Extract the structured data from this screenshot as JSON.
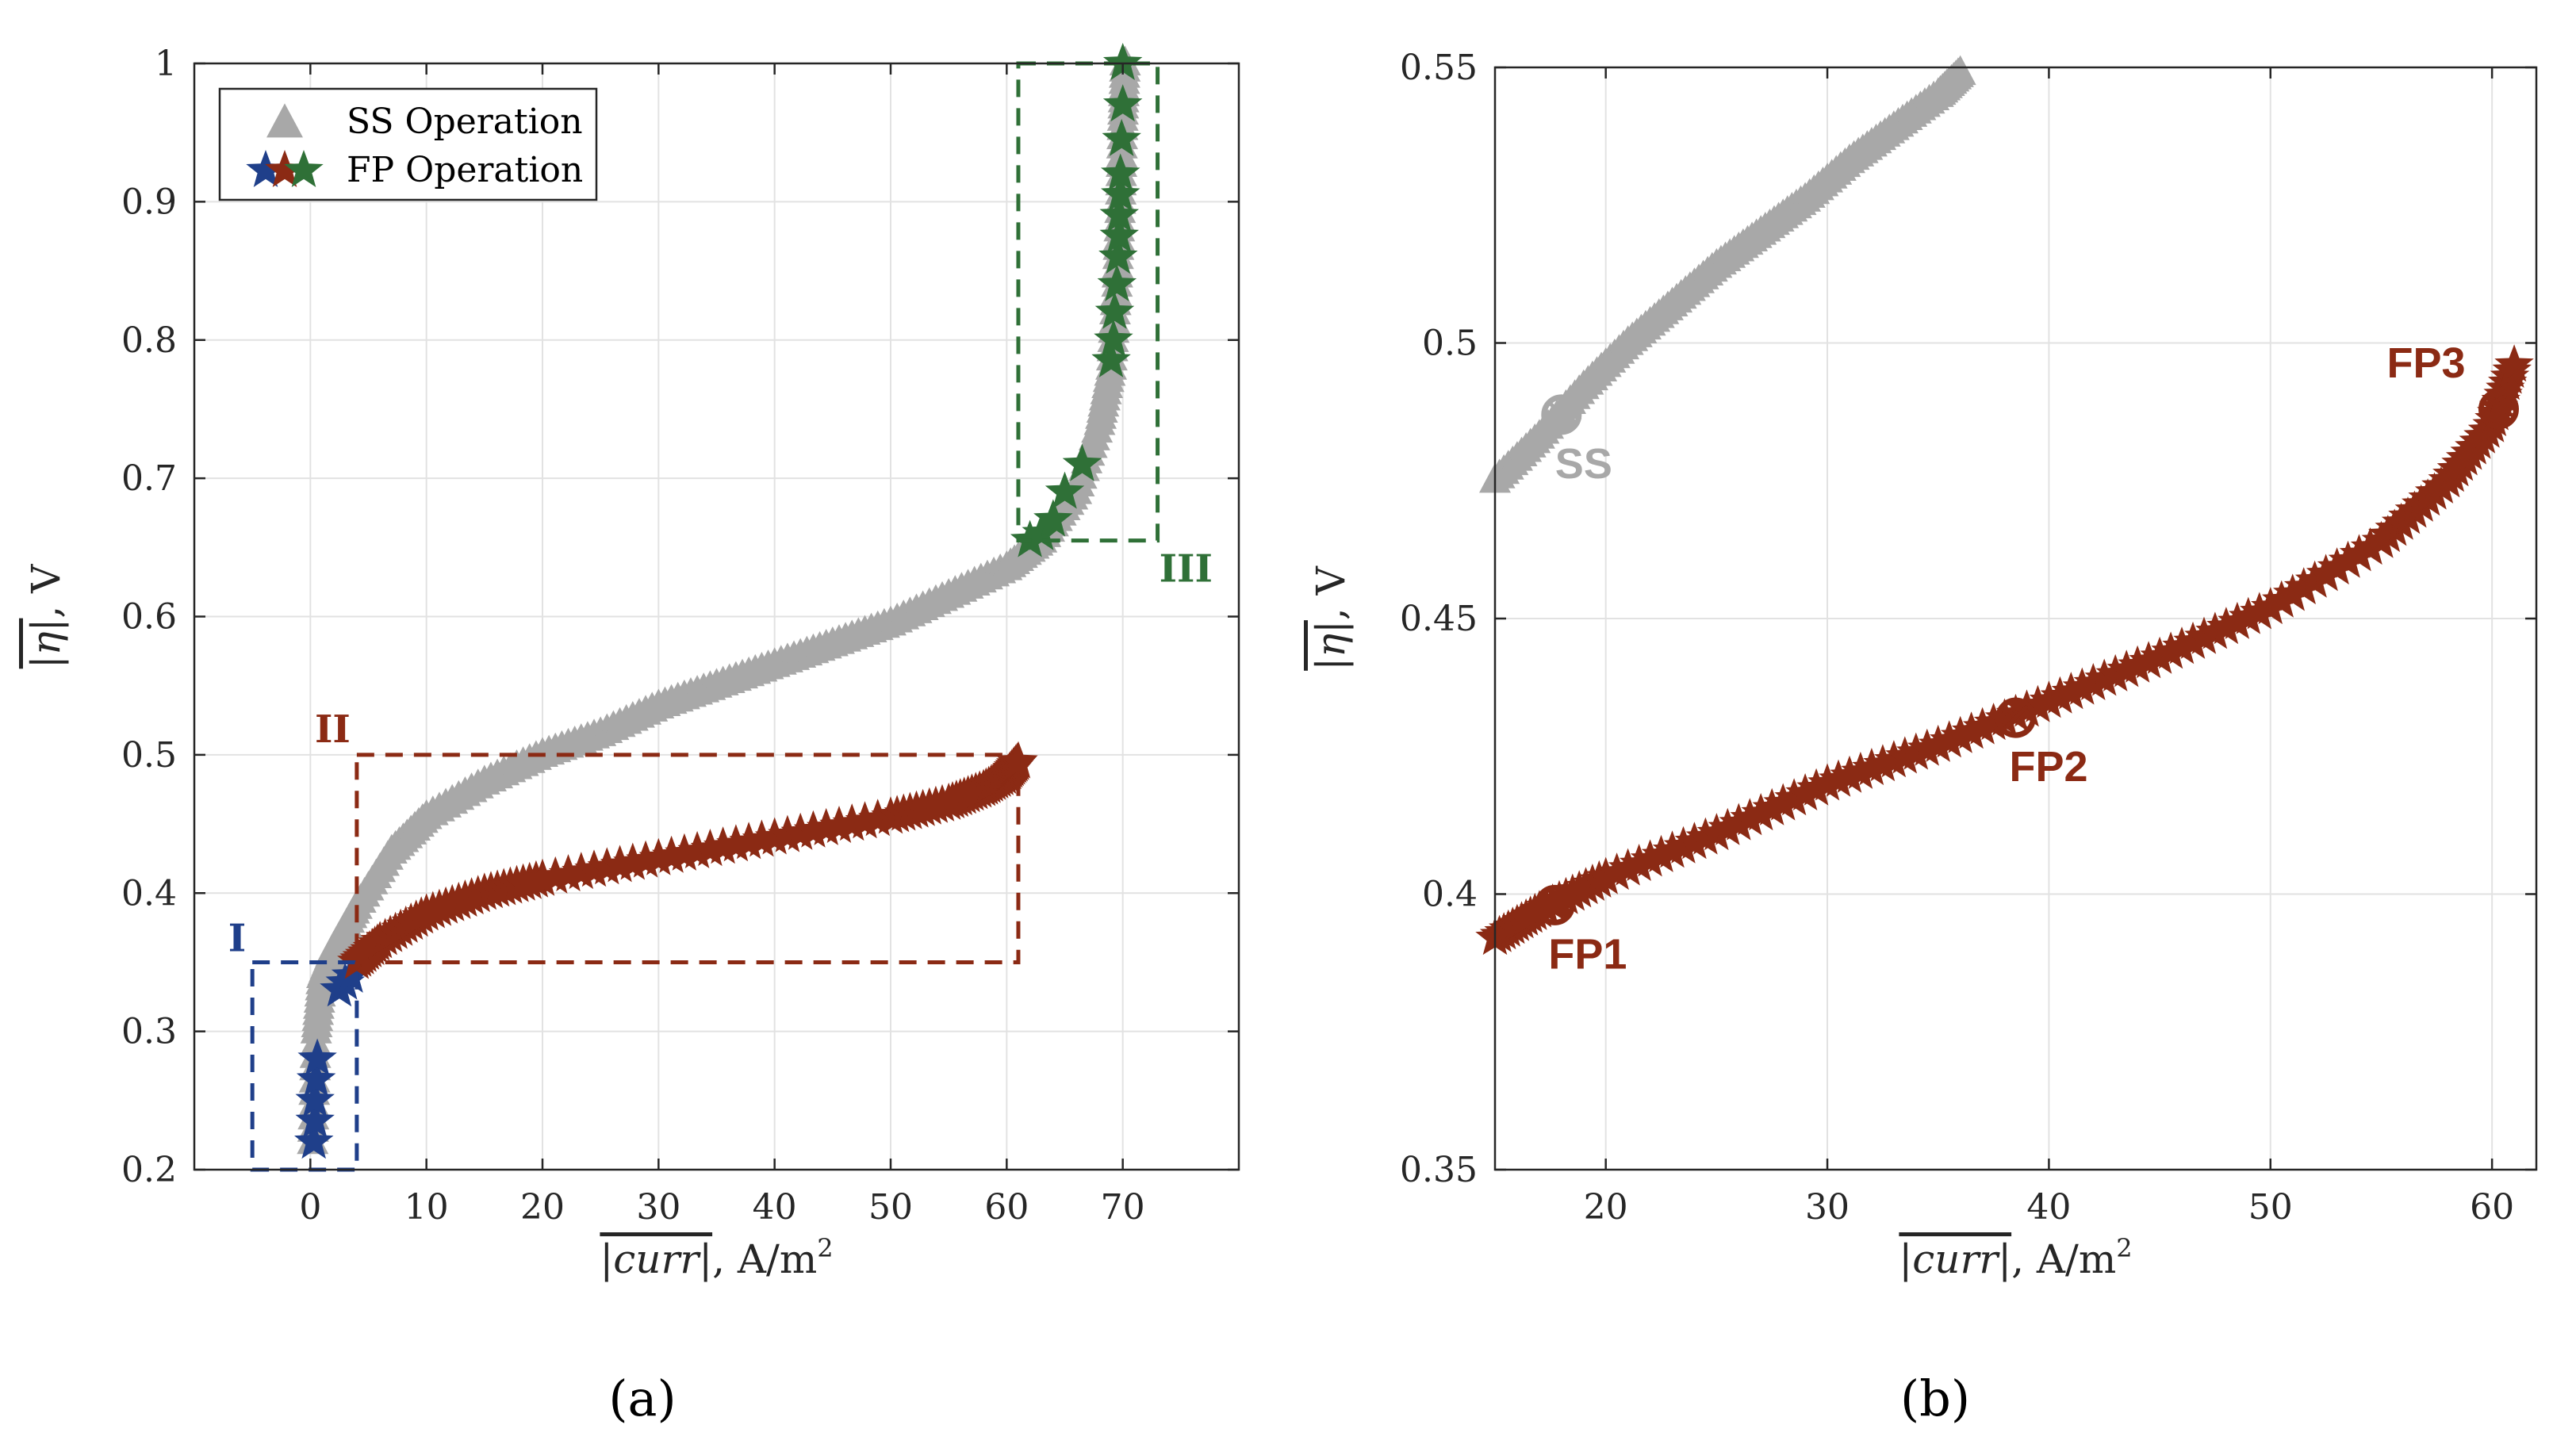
{
  "colors": {
    "ss": "#a8a8a8",
    "fp_blue": "#1f3f8a",
    "fp_red": "#8b2a14",
    "fp_green": "#2f7037",
    "grid": "#e2e2e2",
    "axis": "#262626"
  },
  "panel_a_label": "(a)",
  "panel_b_label": "(b)",
  "chart_data": [
    {
      "type": "scatter",
      "panel": "a",
      "xlabel_main": "|curr|",
      "xlabel_unit": ", A/m",
      "xlabel_sup": "2",
      "ylabel_main": "|η|",
      "ylabel_unit": ", V",
      "xlim": [
        -10,
        80
      ],
      "ylim": [
        0.2,
        1.0
      ],
      "xticks": [
        0,
        10,
        20,
        30,
        40,
        50,
        60,
        70
      ],
      "yticks": [
        0.2,
        0.3,
        0.4,
        0.5,
        0.6,
        0.7,
        0.8,
        0.9,
        1.0
      ],
      "xtick_labels": [
        "0",
        "10",
        "20",
        "30",
        "40",
        "50",
        "60",
        "70"
      ],
      "ytick_labels": [
        "0.2",
        "0.3",
        "0.4",
        "0.5",
        "0.6",
        "0.7",
        "0.8",
        "0.9",
        "1"
      ],
      "grid": true,
      "legend": {
        "position": "top-left",
        "entries": [
          {
            "label": "SS Operation",
            "marker": "triangle"
          },
          {
            "label": "FP Operation",
            "marker": "stars"
          }
        ]
      },
      "series": [
        {
          "name": "SS Operation",
          "marker": "triangle",
          "color": "#a8a8a8",
          "curve": [
            [
              0.2,
              0.22
            ],
            [
              0.5,
              0.3
            ],
            [
              1.0,
              0.34
            ],
            [
              2.0,
              0.36
            ],
            [
              4.0,
              0.39
            ],
            [
              7.0,
              0.43
            ],
            [
              10.0,
              0.455
            ],
            [
              15.0,
              0.48
            ],
            [
              20.0,
              0.5
            ],
            [
              25.0,
              0.515
            ],
            [
              30.0,
              0.535
            ],
            [
              35.0,
              0.55
            ],
            [
              40.0,
              0.565
            ],
            [
              45.0,
              0.58
            ],
            [
              50.0,
              0.595
            ],
            [
              55.0,
              0.615
            ],
            [
              60.0,
              0.635
            ],
            [
              63.0,
              0.655
            ],
            [
              66.0,
              0.69
            ],
            [
              68.0,
              0.74
            ],
            [
              69.0,
              0.78
            ],
            [
              69.5,
              0.84
            ],
            [
              69.8,
              0.9
            ],
            [
              70.0,
              0.96
            ],
            [
              70.2,
              1.0
            ]
          ]
        },
        {
          "name": "FP Operation I",
          "marker": "star",
          "color": "#1f3f8a",
          "points": [
            [
              0.3,
              0.22
            ],
            [
              0.4,
              0.235
            ],
            [
              0.4,
              0.25
            ],
            [
              0.5,
              0.265
            ],
            [
              0.6,
              0.28
            ],
            [
              2.5,
              0.33
            ],
            [
              3.0,
              0.335
            ],
            [
              3.5,
              0.34
            ]
          ]
        },
        {
          "name": "FP Operation II",
          "marker": "star",
          "color": "#8b2a14",
          "curve": [
            [
              4.0,
              0.35
            ],
            [
              6.0,
              0.365
            ],
            [
              10.0,
              0.385
            ],
            [
              15.0,
              0.4
            ],
            [
              20.0,
              0.41
            ],
            [
              30.0,
              0.425
            ],
            [
              40.0,
              0.44
            ],
            [
              50.0,
              0.455
            ],
            [
              55.0,
              0.465
            ],
            [
              58.0,
              0.475
            ],
            [
              60.0,
              0.485
            ],
            [
              61.0,
              0.495
            ]
          ]
        },
        {
          "name": "FP Operation III",
          "marker": "star",
          "color": "#2f7037",
          "points": [
            [
              62.0,
              0.655
            ],
            [
              63.0,
              0.66
            ],
            [
              64.0,
              0.67
            ],
            [
              65.0,
              0.69
            ],
            [
              66.5,
              0.71
            ],
            [
              69.0,
              0.785
            ],
            [
              69.2,
              0.8
            ],
            [
              69.3,
              0.82
            ],
            [
              69.5,
              0.84
            ],
            [
              69.6,
              0.86
            ],
            [
              69.7,
              0.875
            ],
            [
              69.7,
              0.89
            ],
            [
              69.8,
              0.905
            ],
            [
              69.8,
              0.92
            ],
            [
              69.9,
              0.945
            ],
            [
              70.0,
              0.97
            ],
            [
              70.0,
              1.0
            ]
          ]
        }
      ],
      "annotations": [
        {
          "label": "I",
          "color": "#1f3f8a",
          "box_x": [
            -5,
            4
          ],
          "box_y": [
            0.2,
            0.35
          ]
        },
        {
          "label": "II",
          "color": "#8b2a14",
          "box_x": [
            4,
            61
          ],
          "box_y": [
            0.35,
            0.5
          ]
        },
        {
          "label": "III",
          "color": "#2f7037",
          "box_x": [
            61,
            73
          ],
          "box_y": [
            0.655,
            1.0
          ]
        }
      ]
    },
    {
      "type": "scatter",
      "panel": "b",
      "xlabel_main": "|curr|",
      "xlabel_unit": ", A/m",
      "xlabel_sup": "2",
      "ylabel_main": "|η|",
      "ylabel_unit": ", V",
      "xlim": [
        15,
        62
      ],
      "ylim": [
        0.35,
        0.55
      ],
      "xticks": [
        20,
        30,
        40,
        50,
        60
      ],
      "yticks": [
        0.35,
        0.4,
        0.45,
        0.5,
        0.55
      ],
      "xtick_labels": [
        "20",
        "30",
        "40",
        "50",
        "60"
      ],
      "ytick_labels": [
        "0.35",
        "0.4",
        "0.45",
        "0.5",
        "0.55"
      ],
      "grid": true,
      "series": [
        {
          "name": "SS Operation",
          "marker": "triangle",
          "color": "#a8a8a8",
          "curve": [
            [
              15.0,
              0.475
            ],
            [
              17.0,
              0.483
            ],
            [
              19.0,
              0.492
            ],
            [
              21.0,
              0.5
            ],
            [
              23.0,
              0.507
            ],
            [
              25.0,
              0.514
            ],
            [
              27.0,
              0.52
            ],
            [
              29.0,
              0.526
            ],
            [
              31.0,
              0.533
            ],
            [
              33.0,
              0.539
            ],
            [
              35.0,
              0.545
            ],
            [
              36.0,
              0.549
            ]
          ]
        },
        {
          "name": "FP Operation",
          "marker": "star",
          "color": "#8b2a14",
          "curve": [
            [
              15.0,
              0.392
            ],
            [
              17.0,
              0.397
            ],
            [
              20.0,
              0.403
            ],
            [
              25.0,
              0.411
            ],
            [
              30.0,
              0.42
            ],
            [
              35.0,
              0.427
            ],
            [
              40.0,
              0.435
            ],
            [
              45.0,
              0.443
            ],
            [
              50.0,
              0.452
            ],
            [
              55.0,
              0.464
            ],
            [
              58.0,
              0.475
            ],
            [
              60.0,
              0.485
            ],
            [
              61.0,
              0.496
            ]
          ]
        }
      ],
      "markers": [
        {
          "label": "SS",
          "x": 18.0,
          "y": 0.487,
          "color": "#a8a8a8"
        },
        {
          "label": "FP1",
          "x": 17.7,
          "y": 0.398,
          "color": "#8b2a14"
        },
        {
          "label": "FP2",
          "x": 38.5,
          "y": 0.432,
          "color": "#8b2a14"
        },
        {
          "label": "FP3",
          "x": 60.3,
          "y": 0.488,
          "color": "#8b2a14"
        }
      ]
    }
  ]
}
